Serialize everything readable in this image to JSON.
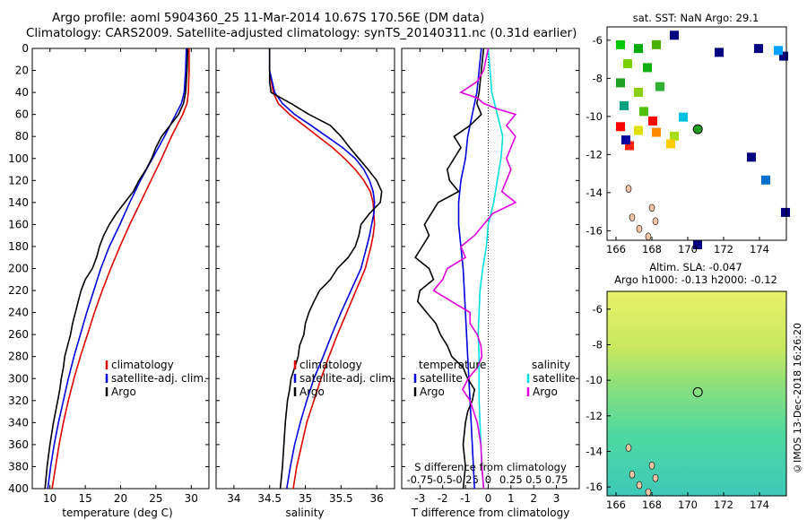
{
  "header": {
    "line1": "Argo profile: aoml 5904360_25 11-Mar-2014 10.67S 170.56E (DM data)",
    "line2": "Climatology: CARS2009. Satellite-adjusted climatology: synTS_20140311.nc (0.31d earlier)"
  },
  "colors": {
    "climatology": "#e00000",
    "satellite": "#0000e0",
    "argo": "#000000",
    "sal_satellite": "#00e0e0",
    "sal_argo": "#e000e0"
  },
  "depth_axis": {
    "ylim": [
      0,
      400
    ],
    "ticks": [
      "0",
      "20",
      "40",
      "60",
      "80",
      "100",
      "120",
      "140",
      "160",
      "180",
      "200",
      "220",
      "240",
      "260",
      "280",
      "300",
      "320",
      "340",
      "360",
      "380",
      "400"
    ]
  },
  "chart_data": [
    {
      "type": "line",
      "name": "temperature-panel",
      "xlabel": "temperature (deg C)",
      "ylabel": "",
      "xlim": [
        7.5,
        32.5
      ],
      "ylim": [
        0,
        400
      ],
      "x_ticks": [
        "10",
        "15",
        "20",
        "25",
        "30"
      ],
      "legend": [
        "climatology",
        "satellite-adj. clim.",
        "Argo"
      ],
      "series": [
        {
          "name": "climatology",
          "color_key": "climatology",
          "depth": [
            0,
            20,
            40,
            50,
            60,
            70,
            80,
            100,
            120,
            140,
            160,
            180,
            200,
            220,
            240,
            260,
            280,
            300,
            320,
            340,
            360,
            380,
            400
          ],
          "values": [
            29.7,
            29.7,
            29.6,
            29.4,
            28.8,
            28.0,
            27.2,
            25.8,
            24.3,
            22.8,
            21.3,
            19.9,
            18.6,
            17.4,
            16.3,
            15.3,
            14.3,
            13.4,
            12.6,
            11.9,
            11.3,
            10.8,
            10.3
          ]
        },
        {
          "name": "satellite-adj. clim.",
          "color_key": "satellite",
          "depth": [
            0,
            20,
            40,
            50,
            60,
            70,
            80,
            100,
            120,
            140,
            160,
            180,
            200,
            220,
            240,
            260,
            280,
            300,
            320,
            340,
            360,
            380,
            400
          ],
          "values": [
            29.3,
            29.2,
            29.0,
            28.6,
            27.8,
            27.0,
            26.2,
            24.5,
            22.8,
            21.3,
            19.9,
            18.4,
            17.2,
            16.2,
            15.2,
            14.3,
            13.4,
            12.6,
            11.9,
            11.2,
            10.6,
            10.1,
            9.7
          ]
        },
        {
          "name": "Argo",
          "color_key": "argo",
          "depth": [
            0,
            20,
            40,
            50,
            60,
            70,
            80,
            90,
            100,
            110,
            120,
            130,
            140,
            150,
            160,
            170,
            180,
            190,
            200,
            210,
            220,
            230,
            240,
            250,
            260,
            270,
            280,
            290,
            300,
            310,
            320,
            340,
            360,
            380,
            400
          ],
          "values": [
            29.5,
            29.4,
            29.2,
            28.9,
            28.2,
            27.0,
            25.8,
            25.0,
            24.4,
            23.6,
            22.6,
            21.8,
            20.6,
            19.4,
            18.4,
            17.6,
            17.0,
            16.6,
            16.0,
            15.0,
            14.4,
            14.0,
            13.6,
            13.2,
            12.9,
            12.5,
            12.1,
            11.9,
            11.6,
            11.4,
            11.1,
            10.5,
            10.0,
            9.6,
            9.3
          ]
        }
      ]
    },
    {
      "type": "line",
      "name": "salinity-panel",
      "xlabel": "salinity",
      "ylabel": "",
      "xlim": [
        33.75,
        36.25
      ],
      "ylim": [
        0,
        400
      ],
      "x_ticks": [
        "34",
        "34.5",
        "35",
        "35.5",
        "36"
      ],
      "legend": [
        "climatology",
        "satellite-adj. clim.",
        "Argo"
      ],
      "series": [
        {
          "name": "climatology",
          "color_key": "climatology",
          "depth": [
            0,
            20,
            40,
            50,
            60,
            70,
            80,
            90,
            100,
            110,
            120,
            130,
            140,
            150,
            160,
            170,
            180,
            190,
            200,
            220,
            240,
            260,
            280,
            300,
            320,
            340,
            360,
            380,
            400
          ],
          "values": [
            34.5,
            34.5,
            34.55,
            34.62,
            34.78,
            34.98,
            35.18,
            35.38,
            35.55,
            35.7,
            35.82,
            35.91,
            35.95,
            35.96,
            35.97,
            35.95,
            35.92,
            35.88,
            35.84,
            35.71,
            35.58,
            35.45,
            35.33,
            35.22,
            35.12,
            35.02,
            34.95,
            34.88,
            34.83
          ]
        },
        {
          "name": "satellite-adj. clim.",
          "color_key": "satellite",
          "depth": [
            0,
            20,
            40,
            50,
            60,
            70,
            80,
            90,
            100,
            110,
            120,
            130,
            140,
            150,
            160,
            170,
            180,
            190,
            200,
            220,
            240,
            260,
            280,
            300,
            320,
            340,
            360,
            380,
            400
          ],
          "values": [
            34.5,
            34.5,
            34.57,
            34.68,
            34.85,
            35.08,
            35.3,
            35.52,
            35.7,
            35.82,
            35.9,
            35.95,
            35.97,
            35.96,
            35.93,
            35.9,
            35.86,
            35.82,
            35.78,
            35.64,
            35.5,
            35.37,
            35.25,
            35.12,
            35.02,
            34.93,
            34.85,
            34.79,
            34.74
          ]
        },
        {
          "name": "Argo",
          "color_key": "argo",
          "depth": [
            0,
            20,
            30,
            40,
            50,
            60,
            70,
            80,
            90,
            100,
            110,
            120,
            130,
            140,
            150,
            160,
            170,
            180,
            190,
            200,
            210,
            220,
            230,
            240,
            250,
            260,
            270,
            280,
            290,
            300,
            310,
            320,
            340,
            360,
            380,
            400
          ],
          "values": [
            34.5,
            34.5,
            34.5,
            34.52,
            34.8,
            35.05,
            35.35,
            35.5,
            35.62,
            35.75,
            35.88,
            36.0,
            36.07,
            36.05,
            35.9,
            35.78,
            35.75,
            35.7,
            35.6,
            35.45,
            35.35,
            35.2,
            35.12,
            35.05,
            35.0,
            34.98,
            34.92,
            34.9,
            34.85,
            34.8,
            34.78,
            34.75,
            34.72,
            34.7,
            34.68,
            34.65
          ]
        }
      ]
    },
    {
      "type": "line",
      "name": "difference-panel",
      "xlabel": "T difference from climatology",
      "xlabel_top": "S difference from climatology",
      "ylabel": "",
      "xlim": [
        -3.8,
        4.0
      ],
      "ylim": [
        0,
        400
      ],
      "x_ticks": [
        "-3",
        "-2",
        "-1",
        "0",
        "1",
        "2",
        "3"
      ],
      "s_ticks": [
        "-0.75",
        "-0.5",
        "-0.25",
        "0",
        "0.25",
        "0.5",
        "0.75"
      ],
      "legend_titles": [
        "temperature",
        "salinity"
      ],
      "legend_temperature": [
        "satellite",
        "Argo"
      ],
      "legend_salinity": [
        "satellite",
        "Argo"
      ],
      "series": [
        {
          "name": "T satellite",
          "color_key": "satellite",
          "depth": [
            0,
            20,
            40,
            60,
            80,
            100,
            120,
            140,
            160,
            180,
            200,
            240,
            280,
            320,
            360,
            400
          ],
          "values": [
            -0.3,
            -0.4,
            -0.5,
            -0.7,
            -0.9,
            -1.0,
            -1.2,
            -1.3,
            -1.3,
            -1.2,
            -1.1,
            -1.0,
            -0.9,
            -0.8,
            -0.7,
            -0.6
          ]
        },
        {
          "name": "T Argo",
          "color_key": "argo",
          "depth": [
            0,
            20,
            40,
            50,
            60,
            70,
            80,
            90,
            100,
            110,
            120,
            130,
            140,
            150,
            160,
            170,
            180,
            190,
            200,
            210,
            220,
            230,
            240,
            250,
            260,
            270,
            280,
            290,
            300,
            310,
            320,
            330,
            340,
            360,
            380,
            400
          ],
          "values": [
            -0.2,
            -0.3,
            -0.4,
            -0.5,
            -0.3,
            -0.8,
            -1.5,
            -1.2,
            -1.5,
            -1.8,
            -1.7,
            -1.3,
            -2.2,
            -2.5,
            -2.8,
            -2.6,
            -2.9,
            -3.2,
            -2.6,
            -2.4,
            -3.0,
            -3.1,
            -2.7,
            -2.3,
            -2.1,
            -1.8,
            -1.6,
            -1.1,
            -0.9,
            -0.6,
            -0.7,
            -0.9,
            -1.0,
            -1.1,
            -1.0,
            -1.1
          ]
        },
        {
          "name": "S satellite",
          "color_key": "sal_satellite",
          "depth": [
            0,
            20,
            40,
            60,
            80,
            100,
            120,
            140,
            160,
            180,
            200,
            220,
            240,
            260,
            280,
            300,
            320,
            340,
            360,
            380,
            400
          ],
          "values": [
            0.0,
            0.02,
            0.04,
            0.1,
            0.16,
            0.14,
            0.1,
            0.06,
            0.0,
            -0.02,
            -0.06,
            -0.09,
            -0.1,
            -0.11,
            -0.1,
            -0.1,
            -0.1,
            -0.09,
            -0.08,
            -0.07,
            -0.05
          ]
        },
        {
          "name": "S Argo",
          "color_key": "sal_argo",
          "depth": [
            0,
            20,
            30,
            40,
            45,
            50,
            55,
            60,
            70,
            80,
            90,
            100,
            110,
            120,
            130,
            140,
            150,
            160,
            170,
            180,
            190,
            200,
            210,
            220,
            230,
            240,
            250,
            260,
            270,
            280,
            290,
            300,
            310,
            320,
            340,
            360,
            380,
            400
          ],
          "values": [
            0.0,
            -0.05,
            -0.12,
            -0.3,
            -0.12,
            -0.05,
            0.1,
            0.3,
            0.2,
            0.3,
            0.25,
            0.2,
            0.25,
            0.2,
            0.15,
            0.3,
            0.05,
            -0.05,
            -0.15,
            -0.3,
            -0.25,
            -0.45,
            -0.5,
            -0.6,
            -0.4,
            -0.2,
            -0.2,
            -0.12,
            -0.08,
            -0.07,
            -0.12,
            -0.22,
            -0.28,
            -0.2,
            -0.12,
            -0.08,
            -0.07,
            -0.05
          ]
        }
      ]
    },
    {
      "type": "heatmap",
      "name": "sst-map",
      "title": "sat. SST: NaN Argo: 29.1",
      "xlim": [
        165.5,
        175.5
      ],
      "ylim": [
        -16.5,
        -5.3
      ],
      "x_ticks": [
        "166",
        "168",
        "170",
        "172",
        "174"
      ],
      "y_ticks": [
        "-6",
        "-8",
        "-10",
        "-12",
        "-14",
        "-16"
      ],
      "argo_position": {
        "lon": 170.56,
        "lat": -10.67
      }
    },
    {
      "type": "heatmap",
      "name": "sla-map",
      "title_line1": "Altim. SLA: -0.047",
      "title_line2": "Argo h1000: -0.13 h2000: -0.12",
      "xlim": [
        165.5,
        175.5
      ],
      "ylim": [
        -16.5,
        -5.0
      ],
      "x_ticks": [
        "166",
        "168",
        "170",
        "172",
        "174"
      ],
      "y_ticks": [
        "-6",
        "-8",
        "-10",
        "-12",
        "-14",
        "-16"
      ],
      "argo_position": {
        "lon": 170.56,
        "lat": -10.67
      }
    }
  ],
  "stamp": "©IMOS 13-Dec-2018 16:26:20"
}
